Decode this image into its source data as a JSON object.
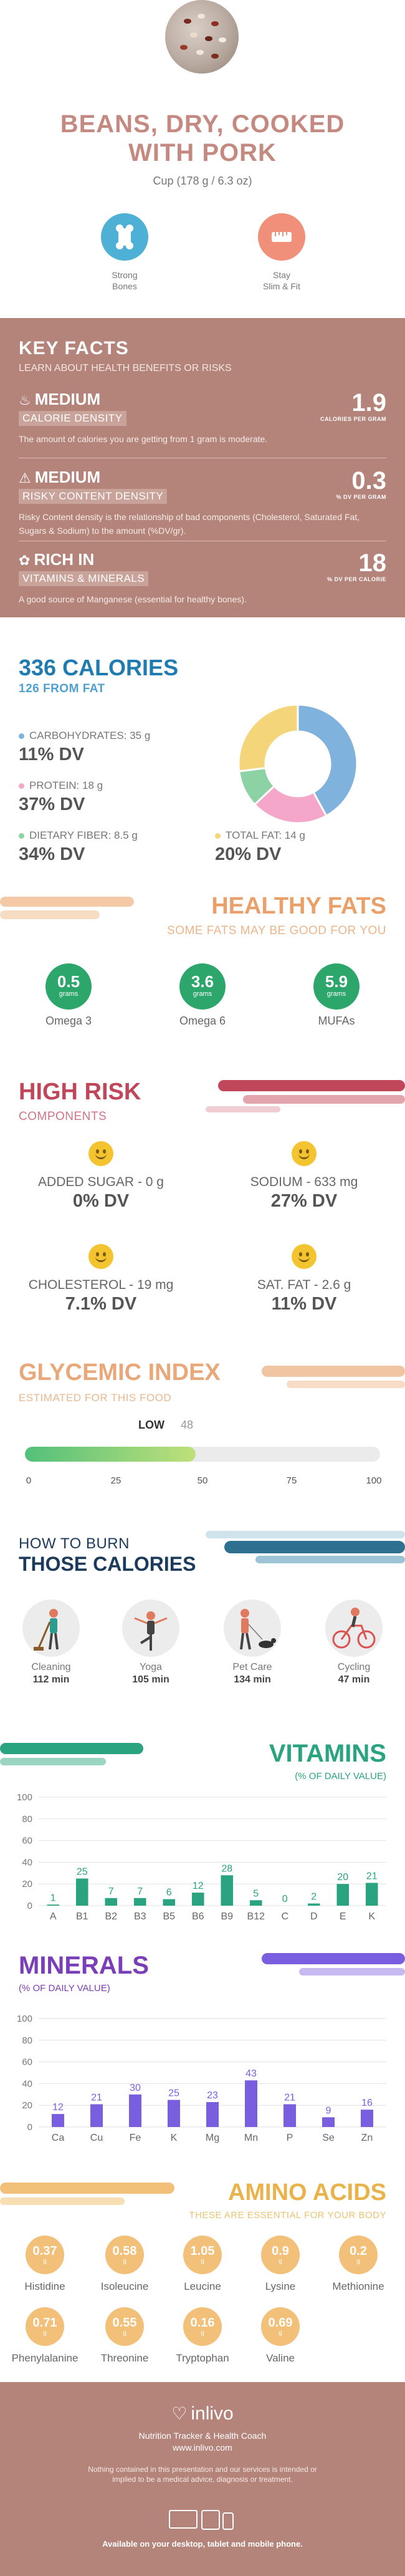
{
  "hero": {
    "title_line1": "BEANS, DRY, COOKED",
    "title_line2": "WITH PORK",
    "serving": "Cup (178 g / 6.3 oz)",
    "badges": [
      {
        "label_line1": "Strong",
        "label_line2": "Bones",
        "icon": "bone-icon",
        "color": "#4fb0d6"
      },
      {
        "label_line1": "Stay",
        "label_line2": "Slim & Fit",
        "icon": "measuring-tape-icon",
        "color": "#f08f7a"
      }
    ]
  },
  "key_facts": {
    "title": "KEY FACTS",
    "subtitle": "LEARN ABOUT HEALTH BENEFITS OR RISKS",
    "rows": [
      {
        "icon": "flame-icon",
        "level": "MEDIUM",
        "tag": "CALORIE DENSITY",
        "value": "1.9",
        "unit": "CALORIES PER GRAM",
        "desc": "The amount of calories you are getting from 1 gram is moderate."
      },
      {
        "icon": "warning-icon",
        "level": "MEDIUM",
        "tag": "RISKY CONTENT DENSITY",
        "value": "0.3",
        "unit": "% DV PER GRAM",
        "desc": "Risky Content density is the relationship of bad components (Cholesterol, Saturated Fat, Sugars & Sodium) to the amount (%DV/gr)."
      },
      {
        "icon": "leaf-icon",
        "level": "RICH  IN",
        "tag": "VITAMINS & MINERALS",
        "value": "18",
        "unit": "% DV PER CALORIE",
        "desc": "A good source of Manganese (essential for healthy bones)."
      }
    ]
  },
  "calories": {
    "title": "336 CALORIES",
    "subtitle": "126 FROM FAT",
    "nutrients": [
      {
        "name": "CARBOHYDRATES: 35 g",
        "dv": "11% DV",
        "color": "#7fb2dd",
        "share": 0.42
      },
      {
        "name": "PROTEIN: 18 g",
        "dv": "37% DV",
        "color": "#f4a7c8",
        "share": 0.21
      },
      {
        "name": "DIETARY FIBER: 8.5 g",
        "dv": "34% DV",
        "color": "#8dd2a4",
        "share": 0.1
      },
      {
        "name": "TOTAL FAT: 14 g",
        "dv": "20% DV",
        "color": "#f5d57a",
        "share": 0.27
      }
    ]
  },
  "healthy_fats": {
    "title": "HEALTHY FATS",
    "subtitle": "SOME FATS MAY BE GOOD FOR YOU",
    "items": [
      {
        "value": "0.5",
        "unit": "grams",
        "name": "Omega 3"
      },
      {
        "value": "3.6",
        "unit": "grams",
        "name": "Omega 6"
      },
      {
        "value": "5.9",
        "unit": "grams",
        "name": "MUFAs"
      }
    ]
  },
  "high_risk": {
    "title": "HIGH RISK",
    "subtitle": "COMPONENTS",
    "items": [
      {
        "name": "ADDED SUGAR - 0 g",
        "dv": "0% DV"
      },
      {
        "name": "SODIUM - 633 mg",
        "dv": "27% DV"
      },
      {
        "name": "CHOLESTEROL - 19 mg",
        "dv": "7.1% DV"
      },
      {
        "name": "SAT. FAT - 2.6 g",
        "dv": "11% DV"
      }
    ]
  },
  "glycemic": {
    "title": "GLYCEMIC INDEX",
    "subtitle": "ESTIMATED FOR THIS FOOD",
    "level_label": "LOW",
    "value": "48",
    "fraction": 0.48,
    "ticks": [
      "0",
      "25",
      "50",
      "75",
      "100"
    ]
  },
  "burn": {
    "title_line1": "HOW TO BURN",
    "title_line2": "THOSE CALORIES",
    "activities": [
      {
        "name": "Cleaning",
        "minutes": "112 min",
        "icon": "cleaning-icon"
      },
      {
        "name": "Yoga",
        "minutes": "105 min",
        "icon": "yoga-icon"
      },
      {
        "name": "Pet Care",
        "minutes": "134 min",
        "icon": "dog-walking-icon"
      },
      {
        "name": "Cycling",
        "minutes": "47 min",
        "icon": "cycling-icon"
      }
    ]
  },
  "vitamins": {
    "title": "VITAMINS",
    "subtitle": "(% OF DAILY VALUE)",
    "color": "#2aa381"
  },
  "minerals": {
    "title": "MINERALS",
    "subtitle": "(% OF DAILY VALUE)",
    "color": "#7a5ee0"
  },
  "amino": {
    "title": "AMINO ACIDS",
    "subtitle": "THESE ARE ESSENTIAL FOR YOUR BODY",
    "items": [
      {
        "value": "0.37",
        "unit": "g",
        "name": "Histidine"
      },
      {
        "value": "0.58",
        "unit": "g",
        "name": "Isoleucine"
      },
      {
        "value": "1.05",
        "unit": "g",
        "name": "Leucine"
      },
      {
        "value": "0.9",
        "unit": "g",
        "name": "Lysine"
      },
      {
        "value": "0.2",
        "unit": "g",
        "name": "Methionine"
      },
      {
        "value": "0.71",
        "unit": "g",
        "name": "Phenylalanine"
      },
      {
        "value": "0.55",
        "unit": "g",
        "name": "Threonine"
      },
      {
        "value": "0.16",
        "unit": "g",
        "name": "Tryptophan"
      },
      {
        "value": "0.69",
        "unit": "g",
        "name": "Valine"
      }
    ]
  },
  "footer": {
    "brand": "inlivo",
    "tagline": "Nutrition Tracker & Health Coach",
    "url": "www.inlivo.com",
    "disclaimer": "Nothing contained in this presentation and our services is intended or implied to be a medical advice, diagnosis or treatment.",
    "availability": "Available on your desktop, tablet and mobile phone."
  },
  "chart_data": [
    {
      "type": "bar",
      "title": "VITAMINS",
      "ylabel": "(% OF DAILY VALUE)",
      "categories": [
        "A",
        "B1",
        "B2",
        "B3",
        "B5",
        "B6",
        "B9",
        "B12",
        "C",
        "D",
        "E",
        "K"
      ],
      "values": [
        1,
        25,
        7,
        7,
        6,
        12,
        28,
        5,
        0,
        2,
        20,
        21
      ],
      "ylim": [
        0,
        100
      ],
      "yticks": [
        0,
        20,
        40,
        60,
        80,
        100
      ],
      "grid": true
    },
    {
      "type": "bar",
      "title": "MINERALS",
      "ylabel": "(% OF DAILY VALUE)",
      "categories": [
        "Ca",
        "Cu",
        "Fe",
        "K",
        "Mg",
        "Mn",
        "P",
        "Se",
        "Zn"
      ],
      "values": [
        12,
        21,
        30,
        25,
        23,
        43,
        21,
        9,
        16
      ],
      "ylim": [
        0,
        100
      ],
      "yticks": [
        0,
        20,
        40,
        60,
        80,
        100
      ],
      "grid": true
    }
  ]
}
